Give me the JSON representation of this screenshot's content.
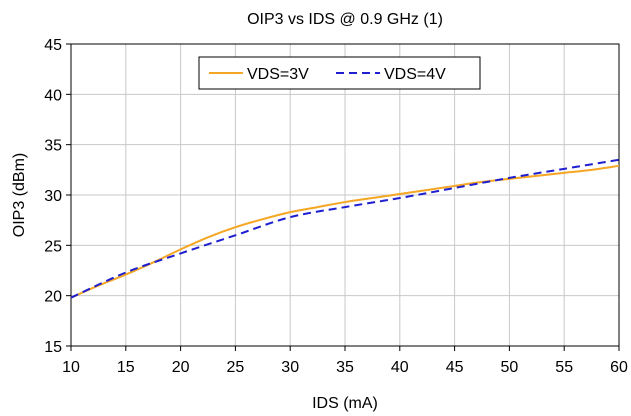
{
  "chart_data": {
    "type": "line",
    "title": "OIP3 vs IDS @ 0.9 GHz (1)",
    "xlabel": "IDS (mA)",
    "ylabel": "OIP3 (dBm)",
    "xlim": [
      10,
      60
    ],
    "ylim": [
      15,
      45
    ],
    "xticks": [
      10,
      15,
      20,
      25,
      30,
      35,
      40,
      45,
      50,
      55,
      60
    ],
    "yticks": [
      15,
      20,
      25,
      30,
      35,
      40,
      45
    ],
    "grid": true,
    "legend_position": "top-center",
    "series": [
      {
        "name": "VDS=3V",
        "color": "#F5A623",
        "style": "solid",
        "x": [
          10,
          12.5,
          15,
          17.5,
          20,
          22.5,
          25,
          27.5,
          30,
          32.5,
          35,
          37.5,
          40,
          42.5,
          45,
          47.5,
          50,
          52.5,
          55,
          57.5,
          60
        ],
        "y": [
          19.8,
          21.0,
          22.1,
          23.3,
          24.6,
          25.8,
          26.8,
          27.6,
          28.3,
          28.8,
          29.3,
          29.7,
          30.1,
          30.5,
          30.9,
          31.3,
          31.6,
          31.9,
          32.2,
          32.5,
          32.9
        ]
      },
      {
        "name": "VDS=4V",
        "color": "#1F1FD0",
        "style": "dashed",
        "x": [
          10,
          15,
          20,
          25,
          30,
          35,
          40,
          45,
          50,
          55,
          60
        ],
        "y": [
          19.8,
          22.3,
          24.2,
          26.0,
          27.8,
          28.8,
          29.7,
          30.7,
          31.7,
          32.6,
          33.5
        ]
      }
    ]
  }
}
